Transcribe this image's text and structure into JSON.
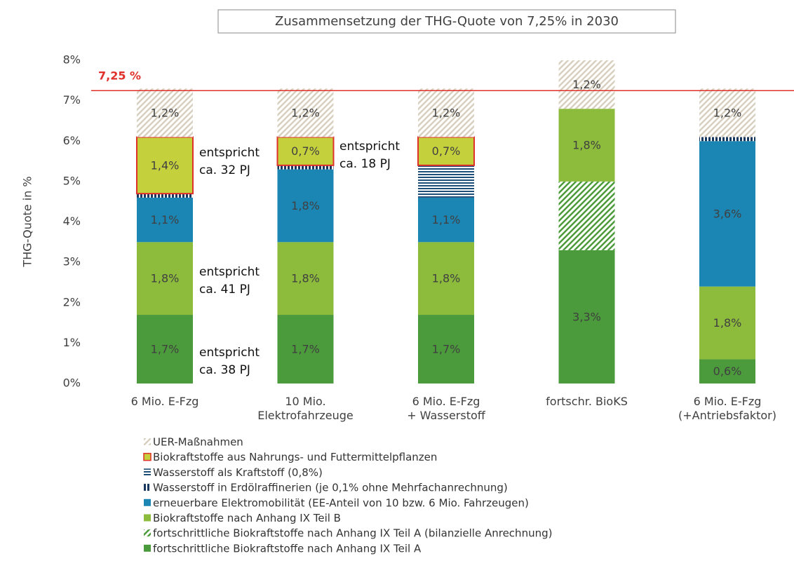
{
  "chart_data": {
    "type": "stacked_bar",
    "title": "Zusammensetzung der THG-Quote von 7,25% in 2030",
    "ylabel": "THG-Quote in %",
    "categories": [
      "6 Mio. E-Fzg",
      "10 Mio.\nElektrofahrzeuge",
      "6 Mio. E-Fzg\n+ Wasserstoff",
      "fortschr. BioKS",
      "6 Mio. E-Fzg\n(+Antriebsfaktor)"
    ],
    "ylim": [
      0,
      8
    ],
    "yticks": [
      {
        "value": 0,
        "label": "0%"
      },
      {
        "value": 1,
        "label": "1%"
      },
      {
        "value": 2,
        "label": "2%"
      },
      {
        "value": 3,
        "label": "3%"
      },
      {
        "value": 4,
        "label": "4%"
      },
      {
        "value": 5,
        "label": "5%"
      },
      {
        "value": 6,
        "label": "6%"
      },
      {
        "value": 7,
        "label": "7%"
      },
      {
        "value": 8,
        "label": "8%"
      }
    ],
    "series": [
      {
        "name": "fortschrittliche Biokraftstoffe nach Anhang IX Teil A",
        "color": "#4b9a3b",
        "pattern": null,
        "values": [
          1.7,
          1.7,
          1.7,
          3.3,
          0.6
        ],
        "value_labels": [
          "1,7%",
          "1,7%",
          "1,7%",
          "3,3%",
          "0,6%"
        ]
      },
      {
        "name": "fortschrittliche Biokraftstoffe nach Anhang IX Teil A  (bilanzielle Anrechnung)",
        "color": "#4b9a3b",
        "pattern": "diagonal",
        "values": [
          null,
          null,
          null,
          1.7,
          null
        ]
      },
      {
        "name": "Biokraftstoffe nach Anhang IX Teil B",
        "color": "#8dbb3c",
        "pattern": null,
        "values": [
          1.8,
          1.8,
          1.8,
          1.8,
          1.8
        ],
        "value_labels": [
          "1,8%",
          "1,8%",
          "1,8%",
          "1,8%",
          "1,8%"
        ]
      },
      {
        "name": "erneuerbare Elektromobilität (EE-Anteil von 10 bzw. 6 Mio. Fahrzeugen)",
        "color": "#1b86b4",
        "pattern": null,
        "values": [
          1.1,
          1.8,
          1.1,
          null,
          3.6
        ],
        "value_labels": [
          "1,1%",
          "1,8%",
          "1,1%",
          null,
          "3,6%"
        ]
      },
      {
        "name": "Wasserstoff in Erdölraffinerien (je 0,1% ohne Mehrfachanrechnung)",
        "color": "#17375e",
        "pattern": "vertical",
        "values": [
          0.1,
          0.1,
          null,
          null,
          0.1
        ]
      },
      {
        "name": "Wasserstoff als Kraftstoff (0,8%)",
        "color": "#1f4e79",
        "pattern": "horizontal",
        "values": [
          null,
          null,
          0.8,
          null,
          null
        ]
      },
      {
        "name": "Biokraftstoffe aus Nahrungs- und Futtermittelpflanzen",
        "color": "#c5d13c",
        "edgecolor": "#e0302a",
        "pattern": null,
        "values": [
          1.4,
          0.7,
          0.7,
          null,
          null
        ],
        "value_labels": [
          "1,4%",
          "0,7%",
          "0,7%",
          null,
          null
        ]
      },
      {
        "name": "UER-Maßnahmen",
        "color": "#d8d0bf",
        "pattern": "diagonal",
        "values": [
          1.2,
          1.2,
          1.2,
          1.2,
          1.2
        ],
        "value_labels": [
          "1,2%",
          "1,2%",
          "1,2%",
          "1,2%",
          "1,2%"
        ]
      }
    ],
    "reference_line": {
      "value": 7.25,
      "label": "7,25 %",
      "color": "#e0302a"
    },
    "annotations": [
      {
        "lines": [
          "entspricht",
          "ca. 32 PJ"
        ]
      },
      {
        "lines": [
          "entspricht",
          "ca. 41 PJ"
        ]
      },
      {
        "lines": [
          "entspricht",
          "ca. 38 PJ"
        ]
      },
      {
        "lines": [
          "entspricht",
          "ca. 18 PJ"
        ]
      }
    ]
  }
}
